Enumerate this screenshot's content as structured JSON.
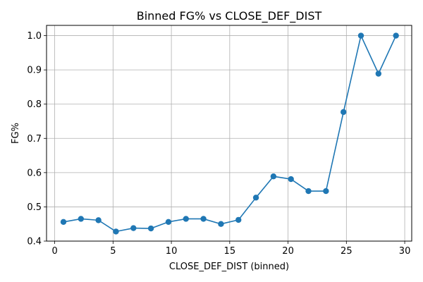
{
  "chart_data": {
    "type": "line",
    "title": "Binned FG% vs CLOSE_DEF_DIST",
    "xlabel": "CLOSE_DEF_DIST (binned)",
    "ylabel": "FG%",
    "xlim": [
      -0.7,
      30.6
    ],
    "ylim": [
      0.4,
      1.03
    ],
    "xticks": [
      0,
      5,
      10,
      15,
      20,
      25,
      30
    ],
    "yticks": [
      0.4,
      0.5,
      0.6,
      0.7,
      0.8,
      0.9,
      1.0
    ],
    "xtick_labels": [
      "0",
      "5",
      "10",
      "15",
      "20",
      "25",
      "30"
    ],
    "ytick_labels": [
      "0.4",
      "0.5",
      "0.6",
      "0.7",
      "0.8",
      "0.9",
      "1.0"
    ],
    "grid": true,
    "series": [
      {
        "color": "#1f77b4",
        "marker": "circle",
        "x": [
          0.75,
          2.25,
          3.75,
          5.25,
          6.75,
          8.25,
          9.75,
          11.25,
          12.75,
          14.25,
          15.75,
          17.25,
          18.75,
          20.25,
          21.75,
          23.25,
          24.75,
          26.25,
          27.75,
          29.25
        ],
        "y": [
          0.456,
          0.465,
          0.461,
          0.428,
          0.438,
          0.437,
          0.456,
          0.465,
          0.465,
          0.45,
          0.462,
          0.527,
          0.589,
          0.581,
          0.546,
          0.546,
          0.777,
          1.0,
          0.889,
          1.0
        ]
      }
    ]
  }
}
